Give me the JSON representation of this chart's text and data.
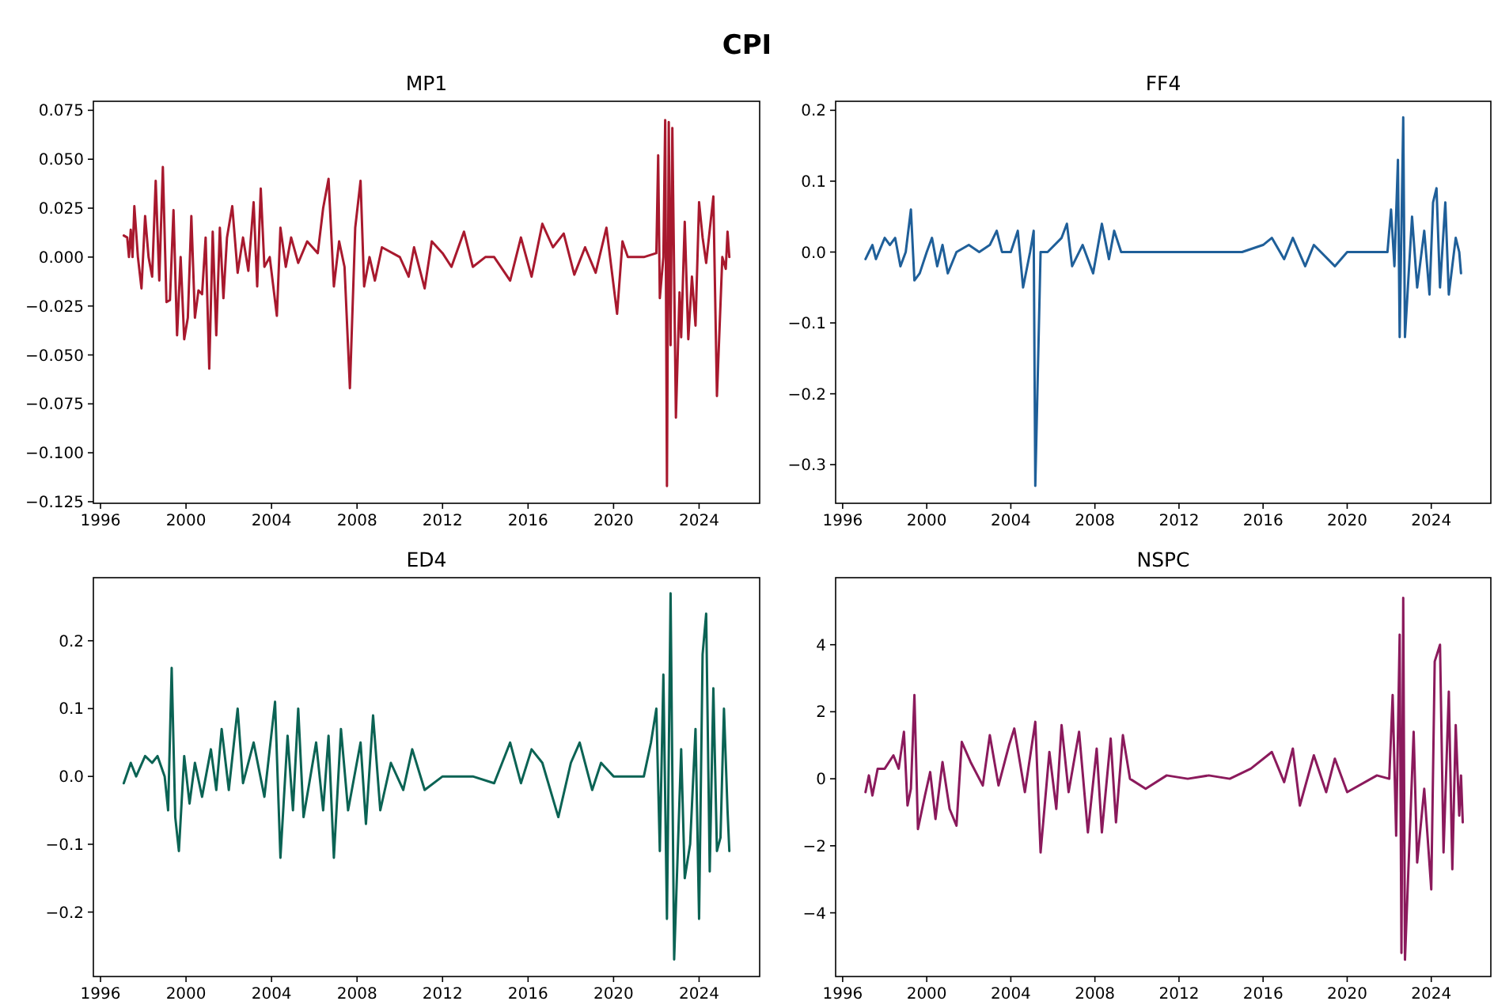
{
  "chart_data": [
    {
      "type": "line",
      "title": "MP1",
      "annotations": [
        "CPI"
      ],
      "xlim": [
        "1995-09",
        "2026-11"
      ],
      "xticks": [
        "1996",
        "2000",
        "2004",
        "2008",
        "2012",
        "2016",
        "2020",
        "2024"
      ],
      "ylim": [
        -0.1258,
        0.0796
      ],
      "yticks": [
        {
          "value": -0.125,
          "label": "−0.125"
        },
        {
          "value": -0.1,
          "label": "−0.100"
        },
        {
          "value": -0.075,
          "label": "−0.075"
        },
        {
          "value": -0.05,
          "label": "−0.050"
        },
        {
          "value": -0.025,
          "label": "−0.025"
        },
        {
          "value": 0,
          "label": "0.000"
        },
        {
          "value": 0.025,
          "label": "0.025"
        },
        {
          "value": 0.05,
          "label": "0.050"
        },
        {
          "value": 0.075,
          "label": "0.075"
        }
      ],
      "x": [
        "1997-02",
        "1997-04",
        "1997-05",
        "1997-06",
        "1997-07",
        "1997-08",
        "1997-10",
        "1997-12",
        "1998-02",
        "1998-04",
        "1998-06",
        "1998-08",
        "1998-10",
        "1998-12",
        "1999-02",
        "1999-04",
        "1999-06",
        "1999-08",
        "1999-10",
        "1999-12",
        "2000-02",
        "2000-04",
        "2000-06",
        "2000-08",
        "2000-10",
        "2000-12",
        "2001-02",
        "2001-04",
        "2001-06",
        "2001-08",
        "2001-10",
        "2001-12",
        "2002-03",
        "2002-06",
        "2002-09",
        "2002-12",
        "2003-03",
        "2003-05",
        "2003-07",
        "2003-09",
        "2003-12",
        "2004-04",
        "2004-06",
        "2004-09",
        "2004-12",
        "2005-04",
        "2005-09",
        "2006-03",
        "2006-06",
        "2006-09",
        "2006-12",
        "2007-03",
        "2007-06",
        "2007-09",
        "2007-12",
        "2008-03",
        "2008-05",
        "2008-08",
        "2008-11",
        "2009-03",
        "2010-01",
        "2010-06",
        "2010-09",
        "2011-03",
        "2011-07",
        "2012-01",
        "2012-06",
        "2013-01",
        "2013-06",
        "2014-01",
        "2014-06",
        "2015-03",
        "2015-09",
        "2016-03",
        "2016-09",
        "2017-03",
        "2017-09",
        "2018-03",
        "2018-09",
        "2019-03",
        "2019-09",
        "2020-03",
        "2020-06",
        "2020-09",
        "2021-06",
        "2022-01",
        "2022-02",
        "2022-03",
        "2022-05",
        "2022-06",
        "2022-07",
        "2022-08",
        "2022-09",
        "2022-10",
        "2022-12",
        "2023-02",
        "2023-03",
        "2023-05",
        "2023-07",
        "2023-09",
        "2023-11",
        "2024-01",
        "2024-03",
        "2024-05",
        "2024-09",
        "2024-11",
        "2025-02",
        "2025-04",
        "2025-05",
        "2025-06"
      ],
      "series": [
        {
          "color": "#a8192e",
          "values": [
            0.011,
            0.01,
            0.0,
            0.014,
            0.0,
            0.026,
            0.0,
            -0.016,
            0.021,
            0.0,
            -0.01,
            0.039,
            -0.012,
            0.046,
            -0.023,
            -0.022,
            0.024,
            -0.04,
            0.0,
            -0.042,
            -0.031,
            0.021,
            -0.031,
            -0.017,
            -0.019,
            0.01,
            -0.057,
            0.013,
            -0.04,
            0.015,
            -0.021,
            0.01,
            0.026,
            -0.008,
            0.01,
            -0.007,
            0.028,
            -0.015,
            0.035,
            -0.005,
            0.0,
            -0.03,
            0.015,
            -0.005,
            0.01,
            -0.003,
            0.008,
            0.002,
            0.025,
            0.04,
            -0.015,
            0.008,
            -0.005,
            -0.067,
            0.015,
            0.039,
            -0.015,
            0.0,
            -0.012,
            0.005,
            0.0,
            -0.01,
            0.005,
            -0.016,
            0.008,
            0.002,
            -0.005,
            0.013,
            -0.005,
            0.0,
            0.0,
            -0.012,
            0.01,
            -0.01,
            0.017,
            0.005,
            0.012,
            -0.009,
            0.005,
            -0.008,
            0.015,
            -0.029,
            0.008,
            0.0,
            0.0,
            0.002,
            0.052,
            -0.021,
            0.0,
            0.07,
            -0.117,
            0.069,
            -0.045,
            0.066,
            -0.082,
            -0.018,
            -0.041,
            0.018,
            -0.042,
            -0.01,
            -0.035,
            0.028,
            0.01,
            -0.003,
            0.031,
            -0.071,
            0.0,
            -0.006,
            0.013,
            0.0
          ]
        }
      ]
    },
    {
      "type": "line",
      "title": "FF4",
      "xlim": [
        "1995-09",
        "2026-11"
      ],
      "xticks": [
        "1996",
        "2000",
        "2004",
        "2008",
        "2012",
        "2016",
        "2020",
        "2024"
      ],
      "ylim": [
        -0.3545,
        0.2127
      ],
      "yticks": [
        {
          "value": -0.3,
          "label": "−0.3"
        },
        {
          "value": -0.2,
          "label": "−0.2"
        },
        {
          "value": -0.1,
          "label": "−0.1"
        },
        {
          "value": 0,
          "label": "0.0"
        },
        0.1,
        0.2
      ],
      "x": [
        "1997-02",
        "1997-04",
        "1997-06",
        "1997-08",
        "1998-01",
        "1998-04",
        "1998-07",
        "1998-10",
        "1999-01",
        "1999-04",
        "1999-06",
        "1999-09",
        "2000-01",
        "2000-04",
        "2000-07",
        "2000-10",
        "2001-01",
        "2001-06",
        "2002-01",
        "2002-07",
        "2003-01",
        "2003-05",
        "2003-08",
        "2004-01",
        "2004-05",
        "2004-08",
        "2004-12",
        "2005-02",
        "2005-03",
        "2005-06",
        "2005-10",
        "2006-06",
        "2006-09",
        "2006-12",
        "2007-06",
        "2007-12",
        "2008-05",
        "2008-09",
        "2008-12",
        "2009-04",
        "2010-06",
        "2012-06",
        "2013-06",
        "2015-01",
        "2016-01",
        "2016-06",
        "2017-01",
        "2017-06",
        "2018-01",
        "2018-06",
        "2019-06",
        "2020-01",
        "2021-06",
        "2021-12",
        "2022-02",
        "2022-04",
        "2022-06",
        "2022-07",
        "2022-09",
        "2022-10",
        "2023-02",
        "2023-05",
        "2023-09",
        "2023-12",
        "2024-02",
        "2024-04",
        "2024-06",
        "2024-09",
        "2024-11",
        "2025-03",
        "2025-05",
        "2025-06"
      ],
      "series": [
        {
          "color": "#1f5f99",
          "values": [
            -0.01,
            0.0,
            0.01,
            -0.01,
            0.02,
            0.01,
            0.02,
            -0.02,
            0.0,
            0.06,
            -0.04,
            -0.03,
            0.0,
            0.02,
            -0.02,
            0.01,
            -0.03,
            0.0,
            0.01,
            0.0,
            0.01,
            0.03,
            0.0,
            0.0,
            0.03,
            -0.05,
            0.0,
            0.03,
            -0.33,
            0.0,
            0.0,
            0.02,
            0.04,
            -0.02,
            0.01,
            -0.03,
            0.04,
            -0.01,
            0.03,
            0.0,
            0.0,
            0.0,
            0.0,
            0.0,
            0.01,
            0.02,
            -0.01,
            0.02,
            -0.02,
            0.01,
            -0.02,
            0.0,
            0.0,
            0.0,
            0.06,
            -0.02,
            0.13,
            -0.12,
            0.19,
            -0.12,
            0.05,
            -0.05,
            0.03,
            -0.06,
            0.07,
            0.09,
            -0.05,
            0.07,
            -0.06,
            0.02,
            0.0,
            -0.03
          ]
        }
      ]
    },
    {
      "type": "line",
      "title": "ED4",
      "xlim": [
        "1995-09",
        "2026-11"
      ],
      "xticks": [
        "1996",
        "2000",
        "2004",
        "2008",
        "2012",
        "2016",
        "2020",
        "2024"
      ],
      "ylim": [
        -0.295,
        0.293
      ],
      "yticks": [
        {
          "value": -0.2,
          "label": "−0.2"
        },
        {
          "value": -0.1,
          "label": "−0.1"
        },
        {
          "value": 0,
          "label": "0.0"
        },
        0.1,
        0.2
      ],
      "x": [
        "1997-02",
        "1997-06",
        "1997-09",
        "1998-02",
        "1998-06",
        "1998-09",
        "1999-01",
        "1999-03",
        "1999-05",
        "1999-07",
        "1999-09",
        "1999-12",
        "2000-03",
        "2000-06",
        "2000-10",
        "2001-03",
        "2001-06",
        "2001-09",
        "2002-01",
        "2002-06",
        "2002-09",
        "2003-03",
        "2003-09",
        "2004-03",
        "2004-06",
        "2004-10",
        "2005-01",
        "2005-04",
        "2005-07",
        "2006-02",
        "2006-06",
        "2006-09",
        "2006-12",
        "2007-04",
        "2007-08",
        "2008-03",
        "2008-06",
        "2008-10",
        "2009-02",
        "2009-08",
        "2010-03",
        "2010-08",
        "2011-03",
        "2012-01",
        "2013-06",
        "2014-06",
        "2015-03",
        "2015-09",
        "2016-03",
        "2016-09",
        "2017-06",
        "2018-01",
        "2018-06",
        "2019-01",
        "2019-06",
        "2020-01",
        "2021-06",
        "2021-10",
        "2022-01",
        "2022-03",
        "2022-05",
        "2022-07",
        "2022-09",
        "2022-11",
        "2023-03",
        "2023-05",
        "2023-08",
        "2023-11",
        "2024-01",
        "2024-03",
        "2024-05",
        "2024-07",
        "2024-09",
        "2024-11",
        "2025-01",
        "2025-03",
        "2025-05",
        "2025-06"
      ],
      "series": [
        {
          "color": "#0b6354",
          "values": [
            -0.01,
            0.02,
            0.0,
            0.03,
            0.02,
            0.03,
            0.0,
            -0.05,
            0.16,
            -0.06,
            -0.11,
            0.03,
            -0.04,
            0.02,
            -0.03,
            0.04,
            -0.02,
            0.07,
            -0.02,
            0.1,
            -0.01,
            0.05,
            -0.03,
            0.11,
            -0.12,
            0.06,
            -0.05,
            0.1,
            -0.06,
            0.05,
            -0.05,
            0.06,
            -0.12,
            0.07,
            -0.05,
            0.05,
            -0.07,
            0.09,
            -0.05,
            0.02,
            -0.02,
            0.04,
            -0.02,
            0.0,
            0.0,
            -0.01,
            0.05,
            -0.01,
            0.04,
            0.02,
            -0.06,
            0.02,
            0.05,
            -0.02,
            0.02,
            0.0,
            0.0,
            0.05,
            0.1,
            -0.11,
            0.15,
            -0.21,
            0.27,
            -0.27,
            0.04,
            -0.15,
            -0.1,
            0.07,
            -0.21,
            0.18,
            0.24,
            -0.14,
            0.13,
            -0.11,
            -0.09,
            0.1,
            -0.05,
            -0.11
          ]
        }
      ]
    },
    {
      "type": "line",
      "title": "NSPC",
      "xlim": [
        "1995-09",
        "2026-11"
      ],
      "xticks": [
        "1996",
        "2000",
        "2004",
        "2008",
        "2012",
        "2016",
        "2020",
        "2024"
      ],
      "ylim": [
        -5.9,
        6.0
      ],
      "yticks": [
        {
          "value": -4,
          "label": "−4"
        },
        {
          "value": -2,
          "label": "−2"
        },
        0,
        2,
        4
      ],
      "x": [
        "1997-02",
        "1997-04",
        "1997-06",
        "1997-09",
        "1998-01",
        "1998-06",
        "1998-09",
        "1998-12",
        "1999-02",
        "1999-04",
        "1999-06",
        "1999-08",
        "1999-12",
        "2000-03",
        "2000-06",
        "2000-10",
        "2001-02",
        "2001-06",
        "2001-09",
        "2002-02",
        "2002-09",
        "2003-01",
        "2003-06",
        "2003-12",
        "2004-03",
        "2004-09",
        "2005-03",
        "2005-06",
        "2005-11",
        "2006-03",
        "2006-06",
        "2006-10",
        "2007-04",
        "2007-09",
        "2008-02",
        "2008-05",
        "2008-10",
        "2009-01",
        "2009-05",
        "2009-09",
        "2010-06",
        "2011-06",
        "2012-06",
        "2013-06",
        "2014-06",
        "2015-06",
        "2016-06",
        "2017-01",
        "2017-06",
        "2017-10",
        "2018-06",
        "2019-01",
        "2019-06",
        "2020-01",
        "2021-06",
        "2022-01",
        "2022-03",
        "2022-05",
        "2022-07",
        "2022-08",
        "2022-09",
        "2022-10",
        "2023-03",
        "2023-05",
        "2023-09",
        "2024-01",
        "2024-03",
        "2024-06",
        "2024-08",
        "2024-11",
        "2025-01",
        "2025-03",
        "2025-05",
        "2025-06",
        "2025-07"
      ],
      "series": [
        {
          "color": "#8b1a5c",
          "values": [
            -0.4,
            0.1,
            -0.5,
            0.3,
            0.3,
            0.7,
            0.3,
            1.4,
            -0.8,
            -0.3,
            2.5,
            -1.5,
            -0.5,
            0.2,
            -1.2,
            0.5,
            -0.9,
            -1.4,
            1.1,
            0.5,
            -0.2,
            1.3,
            -0.2,
            1.0,
            1.5,
            -0.4,
            1.7,
            -2.2,
            0.8,
            -0.9,
            1.6,
            -0.4,
            1.4,
            -1.6,
            0.9,
            -1.6,
            1.2,
            -1.3,
            1.3,
            0.0,
            -0.3,
            0.1,
            0.0,
            0.1,
            0.0,
            0.3,
            0.8,
            -0.1,
            0.9,
            -0.8,
            0.7,
            -0.4,
            0.6,
            -0.4,
            0.1,
            0.0,
            2.5,
            -1.7,
            4.3,
            -5.2,
            5.4,
            -5.4,
            1.4,
            -2.5,
            -0.3,
            -3.3,
            3.5,
            4.0,
            -2.2,
            2.6,
            -2.7,
            1.6,
            -1.1,
            0.1,
            -1.3
          ]
        }
      ]
    }
  ]
}
